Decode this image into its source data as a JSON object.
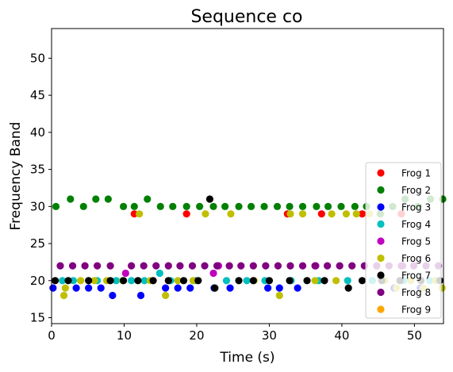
{
  "chart_data": {
    "type": "scatter",
    "title": "Sequence co",
    "xlabel": "Time (s)",
    "ylabel": "Frequency Band",
    "xlim": [
      0,
      54
    ],
    "ylim": [
      14.2,
      54.0
    ],
    "xticks": [
      0,
      10,
      20,
      30,
      40,
      50
    ],
    "yticks": [
      15,
      20,
      25,
      30,
      35,
      40,
      45,
      50
    ],
    "grid": false,
    "legend_position": "lower-right",
    "series": [
      {
        "name": "Frog 1",
        "color": "#ff0000",
        "points": [
          [
            11.4,
            29
          ],
          [
            18.6,
            29
          ],
          [
            32.5,
            29
          ],
          [
            37.2,
            29
          ],
          [
            42.8,
            29
          ],
          [
            48.2,
            29
          ]
        ]
      },
      {
        "name": "Frog 2",
        "color": "#008000",
        "points": [
          [
            0.6,
            30
          ],
          [
            2.6,
            31
          ],
          [
            4.4,
            30
          ],
          [
            6.1,
            31
          ],
          [
            7.8,
            31
          ],
          [
            9.9,
            30
          ],
          [
            11.4,
            30
          ],
          [
            13.2,
            31
          ],
          [
            15.0,
            30
          ],
          [
            16.7,
            30
          ],
          [
            18.6,
            30
          ],
          [
            20.4,
            30
          ],
          [
            22.3,
            30
          ],
          [
            23.9,
            30
          ],
          [
            25.8,
            30
          ],
          [
            27.5,
            30
          ],
          [
            29.3,
            30
          ],
          [
            31.1,
            30
          ],
          [
            32.8,
            30
          ],
          [
            34.6,
            30
          ],
          [
            36.5,
            30
          ],
          [
            38.1,
            30
          ],
          [
            39.9,
            30
          ],
          [
            41.8,
            30
          ],
          [
            43.4,
            30
          ],
          [
            45.3,
            29
          ],
          [
            47.0,
            30
          ],
          [
            48.7,
            31
          ],
          [
            50.5,
            30
          ],
          [
            52.2,
            31
          ],
          [
            53.9,
            31
          ]
        ]
      },
      {
        "name": "Frog 3",
        "color": "#0000ff",
        "points": [
          [
            0.2,
            19
          ],
          [
            3.4,
            19
          ],
          [
            5.1,
            19
          ],
          [
            6.8,
            19
          ],
          [
            8.4,
            18
          ],
          [
            12.3,
            18
          ],
          [
            15.7,
            19
          ],
          [
            17.4,
            19
          ],
          [
            19.1,
            19
          ],
          [
            22.4,
            19
          ],
          [
            24.6,
            19
          ],
          [
            29.8,
            19
          ],
          [
            31.4,
            19
          ],
          [
            33.9,
            19
          ],
          [
            47.2,
            19
          ],
          [
            50.8,
            19
          ]
        ]
      },
      {
        "name": "Frog 4",
        "color": "#00bfbf",
        "points": [
          [
            1.5,
            20
          ],
          [
            3.0,
            20
          ],
          [
            6.3,
            20
          ],
          [
            8.9,
            20
          ],
          [
            11.0,
            20
          ],
          [
            12.8,
            20
          ],
          [
            14.9,
            21
          ],
          [
            16.4,
            20
          ],
          [
            19.8,
            20
          ],
          [
            24.1,
            20
          ],
          [
            26.9,
            20
          ],
          [
            29.4,
            20
          ],
          [
            33.0,
            20
          ],
          [
            36.8,
            20
          ],
          [
            40.8,
            20
          ],
          [
            44.2,
            20
          ],
          [
            48.5,
            20
          ],
          [
            52.1,
            20
          ]
        ]
      },
      {
        "name": "Frog 5",
        "color": "#bf00bf",
        "points": [
          [
            10.2,
            21
          ],
          [
            22.3,
            21
          ],
          [
            23.0,
            22
          ],
          [
            36.4,
            22
          ],
          [
            48.4,
            22
          ]
        ]
      },
      {
        "name": "Frog 6",
        "color": "#bfbf00",
        "points": [
          [
            1.7,
            18
          ],
          [
            1.9,
            19
          ],
          [
            4.0,
            20
          ],
          [
            5.9,
            20
          ],
          [
            7.6,
            20
          ],
          [
            9.8,
            20
          ],
          [
            12.1,
            29
          ],
          [
            13.6,
            20
          ],
          [
            15.7,
            18
          ],
          [
            17.4,
            20
          ],
          [
            19.5,
            20
          ],
          [
            21.2,
            29
          ],
          [
            24.7,
            29
          ],
          [
            27.9,
            20
          ],
          [
            31.4,
            18
          ],
          [
            32.9,
            29
          ],
          [
            34.6,
            29
          ],
          [
            36.3,
            20
          ],
          [
            38.6,
            29
          ],
          [
            39.2,
            20
          ],
          [
            40.6,
            29
          ],
          [
            42.0,
            29
          ],
          [
            43.8,
            29
          ],
          [
            45.9,
            20
          ],
          [
            47.5,
            19
          ],
          [
            49.5,
            20
          ],
          [
            51.2,
            19
          ],
          [
            52.9,
            20
          ],
          [
            53.8,
            19
          ]
        ]
      },
      {
        "name": "Frog 7",
        "color": "#000000",
        "points": [
          [
            0.5,
            20
          ],
          [
            2.3,
            20
          ],
          [
            5.1,
            20
          ],
          [
            8.1,
            20
          ],
          [
            9.9,
            20
          ],
          [
            11.9,
            20
          ],
          [
            14.0,
            20
          ],
          [
            16.1,
            20
          ],
          [
            18.2,
            20
          ],
          [
            20.2,
            20
          ],
          [
            21.8,
            31
          ],
          [
            22.5,
            19
          ],
          [
            25.8,
            20
          ],
          [
            27.8,
            20
          ],
          [
            30.0,
            20
          ],
          [
            32.8,
            20
          ],
          [
            35.2,
            20
          ],
          [
            37.6,
            20
          ],
          [
            40.9,
            19
          ],
          [
            42.8,
            20
          ],
          [
            45.5,
            20
          ],
          [
            48.0,
            20
          ],
          [
            50.9,
            20
          ],
          [
            53.5,
            20
          ]
        ]
      },
      {
        "name": "Frog 8",
        "color": "#800080",
        "points": [
          [
            1.2,
            22
          ],
          [
            2.9,
            22
          ],
          [
            4.6,
            22
          ],
          [
            6.3,
            22
          ],
          [
            8.1,
            22
          ],
          [
            11.0,
            22
          ],
          [
            12.7,
            22
          ],
          [
            14.4,
            22
          ],
          [
            16.1,
            22
          ],
          [
            17.7,
            22
          ],
          [
            19.4,
            22
          ],
          [
            21.1,
            22
          ],
          [
            22.8,
            22
          ],
          [
            24.5,
            22
          ],
          [
            26.1,
            22
          ],
          [
            27.8,
            22
          ],
          [
            29.5,
            22
          ],
          [
            31.2,
            22
          ],
          [
            32.9,
            22
          ],
          [
            34.6,
            22
          ],
          [
            36.3,
            22
          ],
          [
            38.0,
            22
          ],
          [
            39.7,
            22
          ],
          [
            41.4,
            22
          ],
          [
            43.1,
            22
          ],
          [
            44.8,
            22
          ],
          [
            46.5,
            22
          ],
          [
            48.2,
            22
          ],
          [
            49.9,
            22
          ],
          [
            51.6,
            22
          ],
          [
            53.3,
            22
          ]
        ]
      },
      {
        "name": "Frog 9",
        "color": "#ffa500",
        "points": []
      }
    ]
  }
}
